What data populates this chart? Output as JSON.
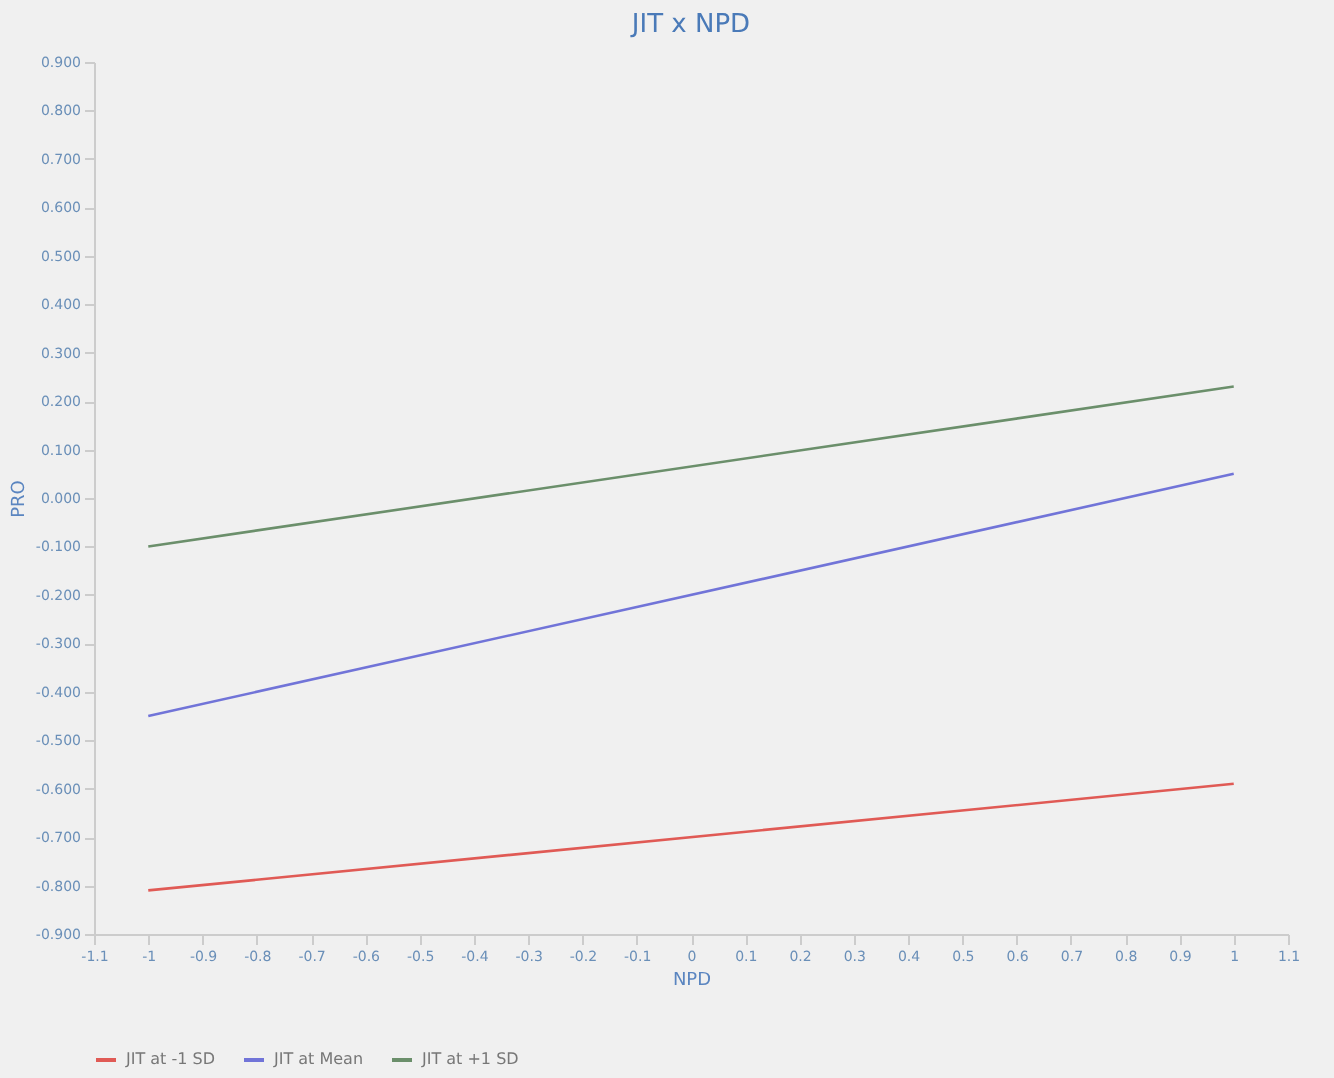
{
  "chart_data": {
    "type": "line",
    "title": "JIT x NPD",
    "xlabel": "NPD",
    "ylabel": "PRO",
    "x": [
      -1,
      1
    ],
    "series": [
      {
        "name": "JIT at -1 SD",
        "color": "#e05a55",
        "values": [
          -0.81,
          -0.59
        ]
      },
      {
        "name": "JIT at Mean",
        "color": "#7174d8",
        "values": [
          -0.45,
          0.05
        ]
      },
      {
        "name": "JIT at +1 SD",
        "color": "#6b8f6b",
        "values": [
          -0.1,
          0.23
        ]
      }
    ],
    "xlim": [
      -1.1,
      1.1
    ],
    "xticks": [
      -1.1,
      -1,
      -0.9,
      -0.8,
      -0.7,
      -0.6,
      -0.5,
      -0.4,
      -0.3,
      -0.2,
      -0.1,
      0,
      0.1,
      0.2,
      0.3,
      0.4,
      0.5,
      0.6,
      0.7,
      0.8,
      0.9,
      1,
      1.1
    ],
    "ylim": [
      -0.9,
      0.9
    ],
    "yticks": [
      {
        "value": -0.9,
        "label": "-0.900"
      },
      {
        "value": -0.8,
        "label": "-0.800"
      },
      {
        "value": -0.7,
        "label": "-0.700"
      },
      {
        "value": -0.6,
        "label": "-0.600"
      },
      {
        "value": -0.5,
        "label": "-0.500"
      },
      {
        "value": -0.4,
        "label": "-0.400"
      },
      {
        "value": -0.3,
        "label": "-0.300"
      },
      {
        "value": -0.2,
        "label": "-0.200"
      },
      {
        "value": -0.1,
        "label": "-0.100"
      },
      {
        "value": 0,
        "label": "0.000"
      },
      {
        "value": 0.1,
        "label": "0.100"
      },
      {
        "value": 0.2,
        "label": "0.200"
      },
      {
        "value": 0.3,
        "label": "0.300"
      },
      {
        "value": 0.4,
        "label": "0.400"
      },
      {
        "value": 0.5,
        "label": "0.500"
      },
      {
        "value": 0.6,
        "label": "0.600"
      },
      {
        "value": 0.7,
        "label": "0.700"
      },
      {
        "value": 0.8,
        "label": "0.800"
      },
      {
        "value": 0.9,
        "label": "0.900"
      }
    ],
    "grid": false,
    "legend": "bottom",
    "marker": "none",
    "line_style": "solid"
  }
}
